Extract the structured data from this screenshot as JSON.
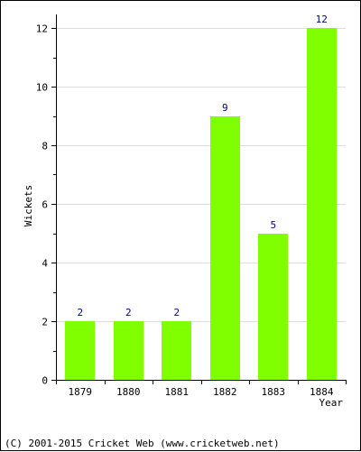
{
  "chart_data": {
    "type": "bar",
    "title": "",
    "xlabel": "Year",
    "ylabel": "Wickets",
    "categories": [
      "1879",
      "1880",
      "1881",
      "1882",
      "1883",
      "1884"
    ],
    "values": [
      2,
      2,
      2,
      9,
      5,
      12
    ],
    "data_labels": [
      "2",
      "2",
      "2",
      "9",
      "5",
      "12"
    ],
    "y_ticks": [
      "0",
      "2",
      "4",
      "6",
      "8",
      "10",
      "12"
    ],
    "ylim": [
      0,
      12
    ],
    "grid": true,
    "colors": {
      "bar": "#80ff00",
      "label": "#000080",
      "grid": "#dddddd",
      "axis": "#000000"
    }
  },
  "footer": {
    "copyright": "(C) 2001-2015 Cricket Web (www.cricketweb.net)"
  }
}
